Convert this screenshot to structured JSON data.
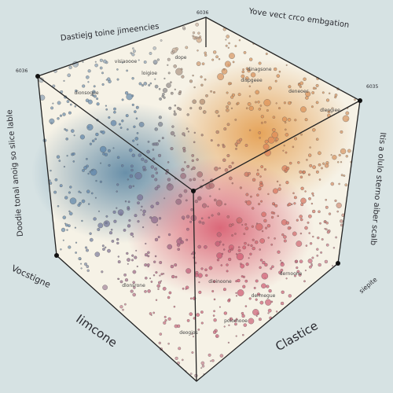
{
  "header": {
    "title_left": "Dastiejg toine jimeencies",
    "title_right": "Yove vect crco embgation",
    "corner_left": "6036",
    "corner_top": "6036",
    "corner_right": "6035"
  },
  "axes": {
    "left_vertical": "Doodie tonal anoig so slice lable",
    "right_vertical": "Itis a olulo sterno aiber scalb",
    "left_bottom": "Vocstigne",
    "front_left": "Iimcone",
    "front_right": "Clastice",
    "right_bottom": "siepite"
  },
  "labels": [
    "visiaoooe",
    "dope",
    "loigioe",
    "dionsogne",
    "dinagsone",
    "dispgeee",
    "deneoec",
    "dernoone",
    "dioinoone",
    "dlonsrone",
    "dermegue",
    "deogios",
    "polomooe",
    "dleogiee"
  ]
}
